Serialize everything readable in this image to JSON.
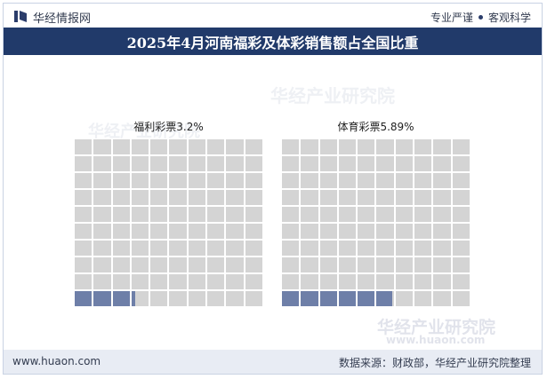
{
  "header": {
    "brand": "华经情报网",
    "tagline_left": "专业严谨",
    "tagline_right": "客观科学"
  },
  "title": "2025年4月河南福彩及体彩销售额占全国比重",
  "watermark": {
    "cn": "华经产业研究院",
    "en": "www.huaon.com"
  },
  "footer": {
    "site": "www.huaon.com",
    "source": "数据来源：财政部，华经产业研究院整理"
  },
  "colors": {
    "title_bg": "#213a6a",
    "filled": "#6e7fa8",
    "empty": "#d4d4d4",
    "footer_bg": "#e8ecf4"
  },
  "chart_data": [
    {
      "type": "waffle",
      "name": "福利彩票",
      "label": "福利彩票3.2%",
      "value": 3.2,
      "unit": "%",
      "grid": [
        10,
        10
      ]
    },
    {
      "type": "waffle",
      "name": "体育彩票",
      "label": "体育彩票5.89%",
      "value": 5.89,
      "unit": "%",
      "grid": [
        10,
        10
      ]
    }
  ]
}
